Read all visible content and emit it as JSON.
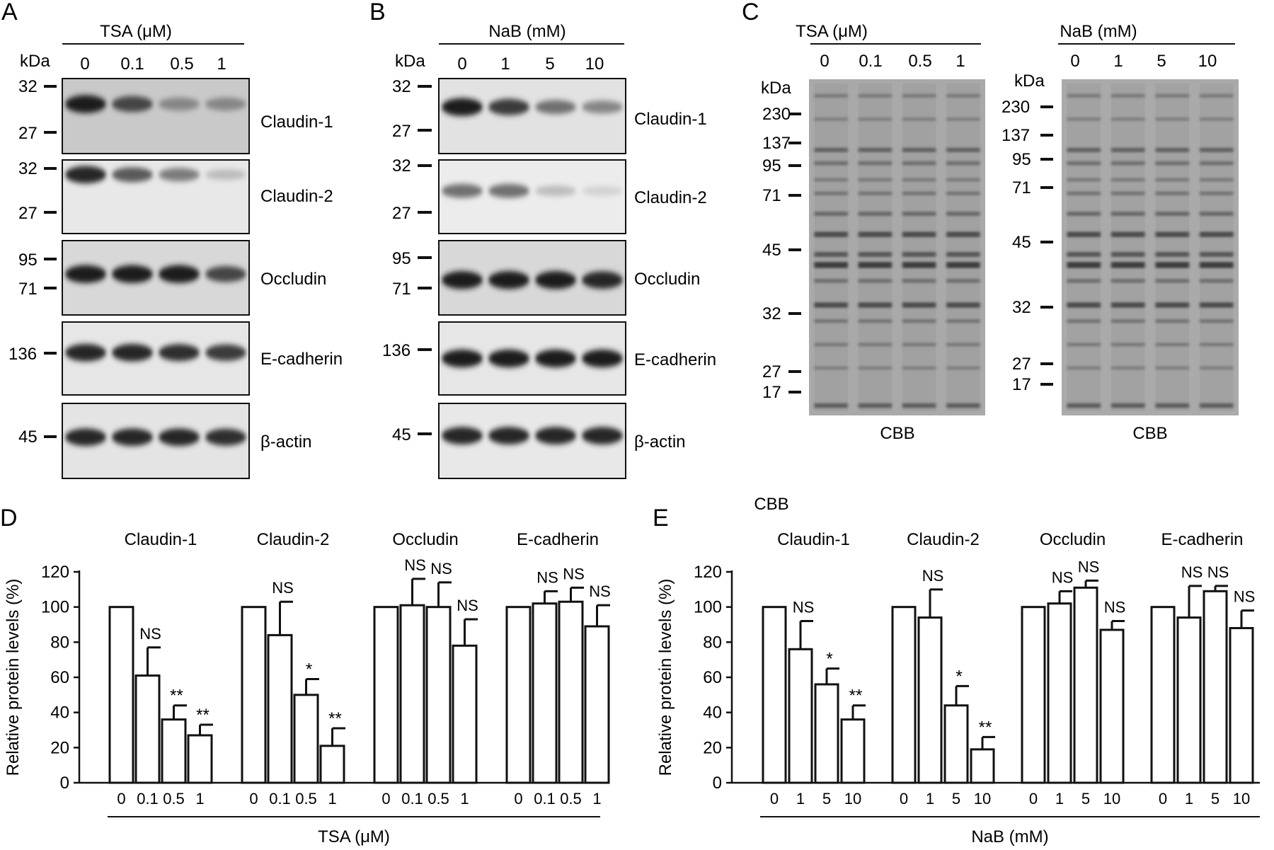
{
  "panels": {
    "A": {
      "letter": "A",
      "header": "TSA (μM)",
      "kda": "kDa",
      "lanes": [
        "0",
        "0.1",
        "0.5",
        "1"
      ],
      "blots": [
        {
          "name": "Claudin-1",
          "markers": [
            "32",
            "27"
          ],
          "intensity": [
            0.95,
            0.75,
            0.45,
            0.45
          ]
        },
        {
          "name": "Claudin-2",
          "markers": [
            "32",
            "27"
          ],
          "intensity": [
            0.9,
            0.65,
            0.5,
            0.2
          ]
        },
        {
          "name": "Occludin",
          "markers": [
            "95",
            "71"
          ],
          "intensity": [
            0.95,
            0.95,
            0.95,
            0.75
          ]
        },
        {
          "name": "E-cadherin",
          "markers": [
            "136"
          ],
          "intensity": [
            0.9,
            0.9,
            0.85,
            0.8
          ]
        },
        {
          "name": "β-actin",
          "markers": [
            "45"
          ],
          "intensity": [
            0.9,
            0.9,
            0.9,
            0.85
          ]
        }
      ]
    },
    "B": {
      "letter": "B",
      "header": "NaB (mM)",
      "kda": "kDa",
      "lanes": [
        "0",
        "1",
        "5",
        "10"
      ],
      "blots": [
        {
          "name": "Claudin-1",
          "markers": [
            "32",
            "27"
          ],
          "intensity": [
            0.95,
            0.8,
            0.55,
            0.45
          ]
        },
        {
          "name": "Claudin-2",
          "markers": [
            "32",
            "27"
          ],
          "intensity": [
            0.55,
            0.55,
            0.2,
            0.1
          ]
        },
        {
          "name": "Occludin",
          "markers": [
            "95",
            "71"
          ],
          "intensity": [
            0.95,
            0.95,
            0.95,
            0.9
          ]
        },
        {
          "name": "E-cadherin",
          "markers": [
            "136"
          ],
          "intensity": [
            0.95,
            0.95,
            0.95,
            0.95
          ]
        },
        {
          "name": "β-actin",
          "markers": [
            "45"
          ],
          "intensity": [
            0.9,
            0.9,
            0.9,
            0.9
          ]
        }
      ]
    },
    "C": {
      "letter": "C",
      "gels": [
        {
          "header": "TSA (μM)",
          "lanes": [
            "0",
            "0.1",
            "0.5",
            "1"
          ],
          "kda": "kDa",
          "markers": [
            "230",
            "137",
            "95",
            "71",
            "45",
            "32",
            "27",
            "17"
          ],
          "caption": "CBB"
        },
        {
          "header": "NaB (mM)",
          "lanes": [
            "0",
            "1",
            "5",
            "10"
          ],
          "kda": "kDa",
          "markers": [
            "230",
            "137",
            "95",
            "71",
            "45",
            "32",
            "27",
            "17"
          ],
          "caption": "CBB"
        }
      ]
    }
  },
  "chart_data": [
    {
      "type": "bar",
      "panel": "D",
      "ylabel": "Relative protein levels (%)",
      "ylim": [
        0,
        120
      ],
      "yticks": [
        "0",
        "20",
        "40",
        "60",
        "80",
        "100",
        "120"
      ],
      "xlabel": "TSA (μM)",
      "categories": [
        "0",
        "0.1",
        "0.5",
        "1"
      ],
      "groups": [
        {
          "name": "Claudin-1",
          "values": [
            100,
            61,
            36,
            27
          ],
          "errors": [
            0,
            16,
            8,
            6
          ],
          "sig": [
            "",
            "NS",
            "**",
            "**"
          ]
        },
        {
          "name": "Claudin-2",
          "values": [
            100,
            84,
            50,
            21
          ],
          "errors": [
            0,
            19,
            9,
            10
          ],
          "sig": [
            "",
            "NS",
            "*",
            "**"
          ]
        },
        {
          "name": "Occludin",
          "values": [
            100,
            101,
            100,
            78
          ],
          "errors": [
            0,
            15,
            14,
            15
          ],
          "sig": [
            "",
            "NS",
            "NS",
            "NS"
          ]
        },
        {
          "name": "E-cadherin",
          "values": [
            100,
            102,
            103,
            89
          ],
          "errors": [
            0,
            7,
            8,
            12
          ],
          "sig": [
            "",
            "NS",
            "NS",
            "NS"
          ]
        }
      ]
    },
    {
      "type": "bar",
      "panel": "E",
      "ylabel": "Relative protein levels (%)",
      "ylim": [
        0,
        120
      ],
      "yticks": [
        "0",
        "20",
        "40",
        "60",
        "80",
        "100",
        "120"
      ],
      "xlabel": "NaB (mM)",
      "categories": [
        "0",
        "1",
        "5",
        "10"
      ],
      "groups": [
        {
          "name": "Claudin-1",
          "values": [
            100,
            76,
            56,
            36
          ],
          "errors": [
            0,
            16,
            9,
            8
          ],
          "sig": [
            "",
            "NS",
            "*",
            "**"
          ]
        },
        {
          "name": "Claudin-2",
          "values": [
            100,
            94,
            44,
            19
          ],
          "errors": [
            0,
            16,
            11,
            7
          ],
          "sig": [
            "",
            "NS",
            "*",
            "**"
          ]
        },
        {
          "name": "Occludin",
          "values": [
            100,
            102,
            111,
            87
          ],
          "errors": [
            0,
            7,
            4,
            5
          ],
          "sig": [
            "",
            "NS",
            "NS",
            "NS"
          ]
        },
        {
          "name": "E-cadherin",
          "values": [
            100,
            94,
            109,
            88
          ],
          "errors": [
            0,
            18,
            3,
            10
          ],
          "sig": [
            "",
            "NS",
            "NS",
            "NS"
          ]
        }
      ]
    }
  ]
}
